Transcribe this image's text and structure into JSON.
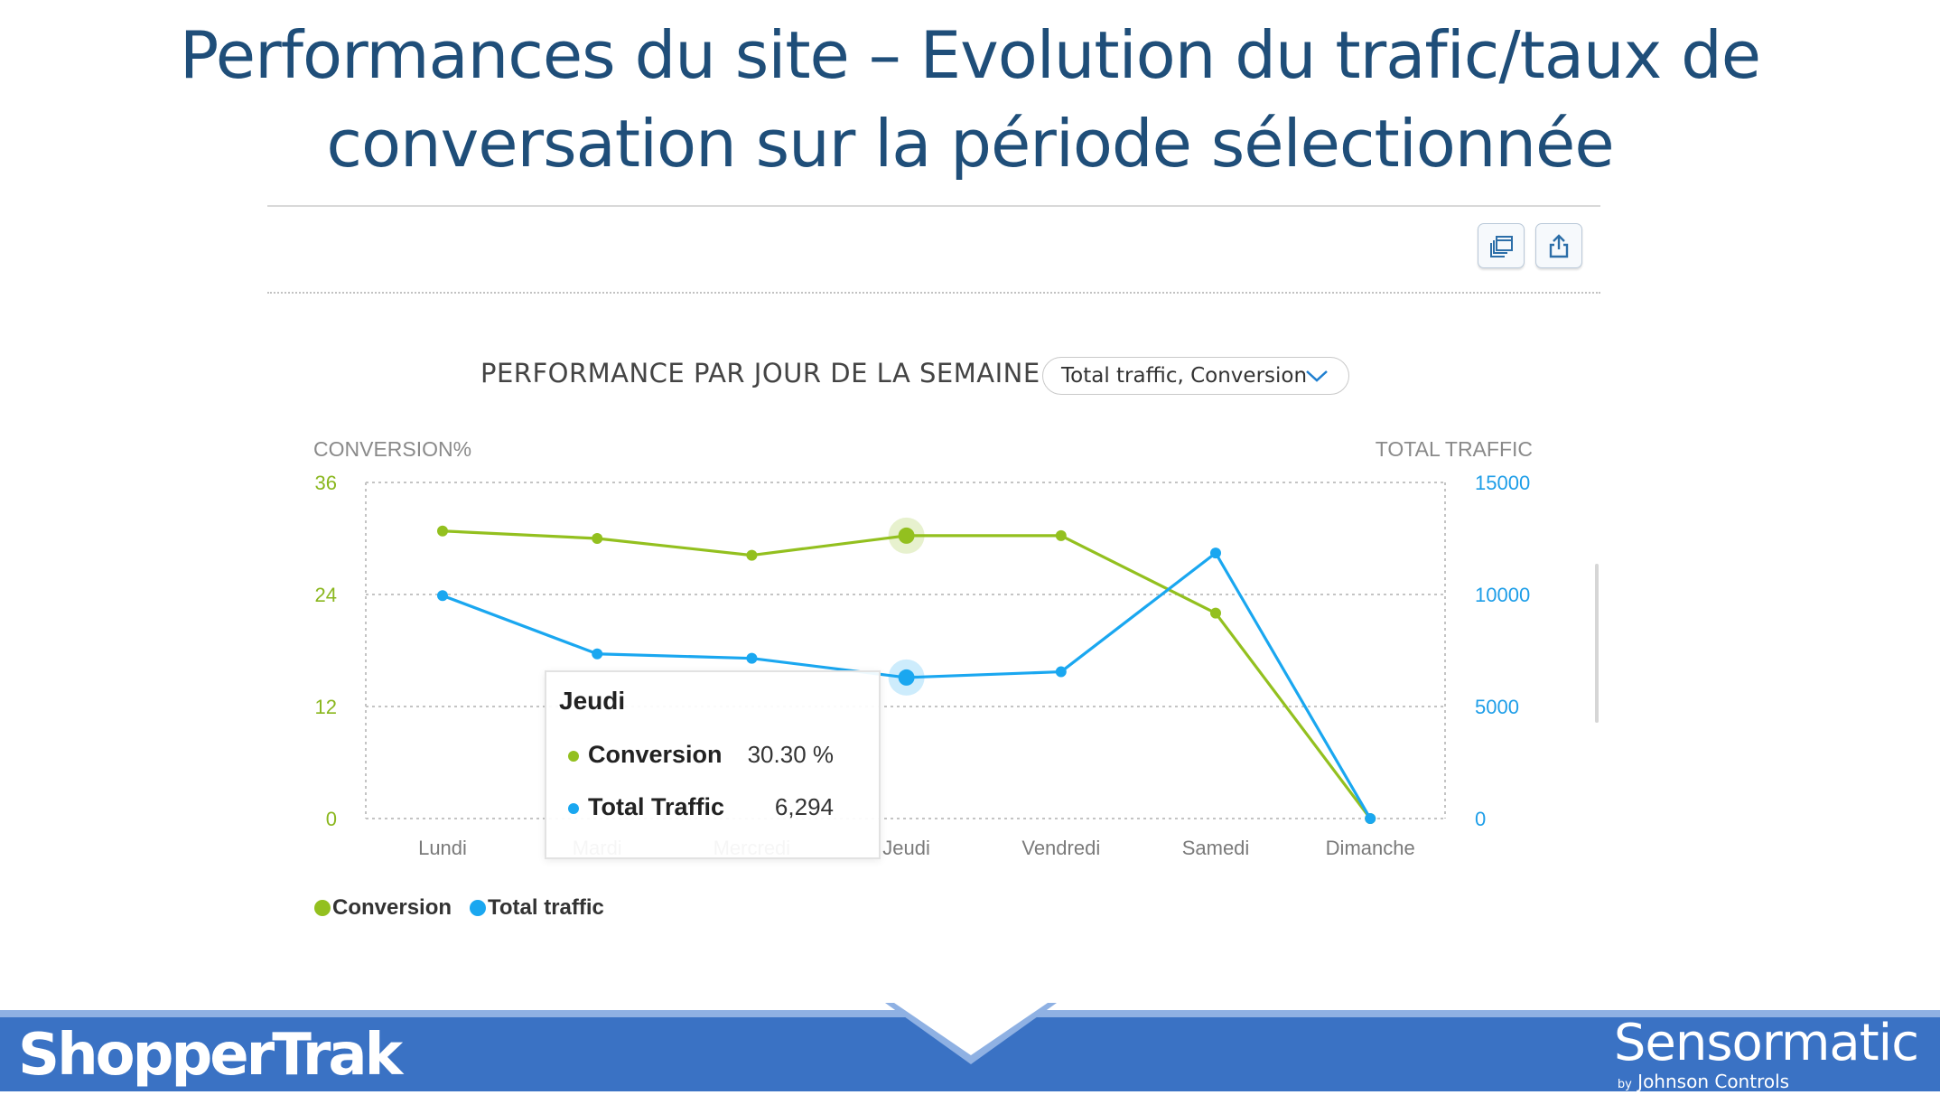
{
  "slide": {
    "title_line1": "Performances du site – Evolution du trafic/taux de",
    "title_line2": "conversation sur la période sélectionnée"
  },
  "toolbar": {
    "icons": [
      "copy-icon",
      "share-icon"
    ]
  },
  "panel": {
    "heading": "PERFORMANCE PAR JOUR DE LA SEMAINE",
    "series_select_value": "Total traffic, Conversion"
  },
  "chart_data": {
    "type": "line",
    "categories": [
      "Lundi",
      "Mardi",
      "Mercredi",
      "Jeudi",
      "Vendredi",
      "Samedi",
      "Dimanche"
    ],
    "series": [
      {
        "name": "Conversion",
        "axis": "left",
        "color": "#93c01f",
        "values": [
          30.8,
          30.0,
          28.2,
          30.3,
          30.3,
          22.0,
          0
        ]
      },
      {
        "name": "Total traffic",
        "axis": "right",
        "color": "#1aa7f0",
        "values": [
          9950,
          7350,
          7150,
          6294,
          6550,
          11850,
          0
        ]
      }
    ],
    "y_left": {
      "label": "CONVERSION%",
      "range": [
        0,
        36
      ],
      "ticks": [
        0,
        12,
        24,
        36
      ]
    },
    "y_right": {
      "label": "TOTAL TRAFFIC",
      "range": [
        0,
        15000
      ],
      "ticks": [
        0,
        5000,
        10000,
        15000
      ]
    },
    "grid": true,
    "legend_position": "bottom-left",
    "highlighted_category": "Jeudi"
  },
  "tooltip": {
    "title": "Jeudi",
    "rows": [
      {
        "label": "Conversion",
        "value": "30.30 %",
        "color": "#93c01f"
      },
      {
        "label": "Total Traffic",
        "value": "6,294",
        "color": "#1aa7f0"
      }
    ]
  },
  "legend": {
    "items": [
      {
        "label": "Conversion",
        "color": "#93c01f"
      },
      {
        "label": "Total traffic",
        "color": "#1aa7f0"
      }
    ]
  },
  "footer": {
    "brand_left": "ShopperTrak",
    "brand_right": "Sensormatic",
    "brand_right_by": "by",
    "brand_right_sub": "Johnson Controls"
  }
}
